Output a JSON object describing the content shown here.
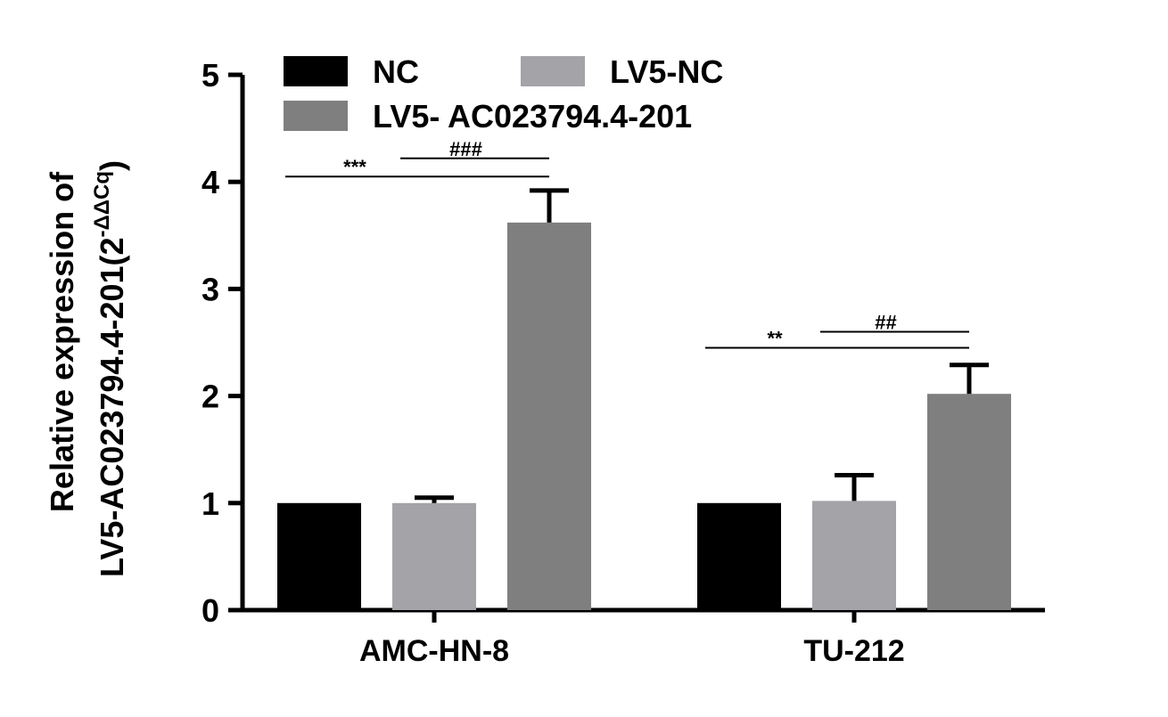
{
  "chart_data": {
    "type": "bar",
    "categories": [
      "AMC-HN-8",
      "TU-212"
    ],
    "series": [
      {
        "name": "NC",
        "values": [
          1.0,
          1.0
        ],
        "errors": [
          0,
          0
        ],
        "color": "#000000"
      },
      {
        "name": "LV5-NC",
        "values": [
          1.0,
          1.02
        ],
        "errors": [
          0.05,
          0.24
        ],
        "color": "#a3a3a8"
      },
      {
        "name": "LV5- AC023794.4-201",
        "values": [
          3.62,
          2.02
        ],
        "errors": [
          0.3,
          0.27
        ],
        "color": "#7f7f7f"
      }
    ],
    "ylabel_line1": "Relative expression of",
    "ylabel_line2": "LV5-AC023794.4-201(2",
    "ylabel_sup": "-ΔΔCq",
    "ylabel_close": ")",
    "ylim": [
      0,
      5
    ],
    "yticks": [
      "0",
      "1",
      "2",
      "3",
      "4",
      "5"
    ],
    "grid": false,
    "legend_position": "top",
    "significance": [
      {
        "category": "AMC-HN-8",
        "from_series": 0,
        "to_series": 2,
        "label": "***",
        "level": 4.05
      },
      {
        "category": "AMC-HN-8",
        "from_series": 1,
        "to_series": 2,
        "label": "###",
        "level": 4.22
      },
      {
        "category": "TU-212",
        "from_series": 0,
        "to_series": 2,
        "label": "**",
        "level": 2.45
      },
      {
        "category": "TU-212",
        "from_series": 1,
        "to_series": 2,
        "label": "##",
        "level": 2.6
      }
    ]
  }
}
